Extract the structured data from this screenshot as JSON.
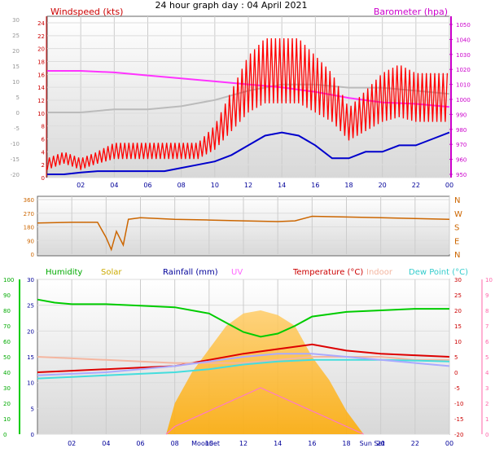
{
  "header": {
    "title": "24 hour graph day : 04 April 2021"
  },
  "chart_data": [
    {
      "type": "line",
      "panel": "wind-barometer",
      "legend": {
        "left": "Windspeed (kts)",
        "right": "Barometer (hpa)"
      },
      "x_ticks": [
        "02",
        "04",
        "06",
        "08",
        "10",
        "12",
        "14",
        "16",
        "18",
        "20",
        "22",
        "00"
      ],
      "x_range": [
        0,
        24
      ],
      "left_axis_outer": {
        "ticks": [
          "30",
          "25",
          "20",
          "15",
          "10",
          "5",
          "0",
          "-5",
          "-10",
          "-15",
          "-20"
        ],
        "range": [
          -20,
          30
        ]
      },
      "left_axis_inner": {
        "ticks": [
          "24",
          "22",
          "20",
          "18",
          "16",
          "14",
          "12",
          "10",
          "8",
          "6",
          "4",
          "2",
          "0"
        ],
        "range": [
          0,
          24
        ]
      },
      "right_axis": {
        "ticks": [
          "1050",
          "1040",
          "1030",
          "1020",
          "1010",
          "1000",
          "990",
          "980",
          "970",
          "960",
          "950"
        ],
        "range": [
          950,
          1050
        ]
      },
      "colors": {
        "wind": "#ff0000",
        "gust_avg": "#0000cc",
        "barometer": "#ff33ff",
        "temp_grey": "#bbbbbb",
        "axis_wind": "#cc0000",
        "axis_baro": "#cc00cc"
      },
      "series": [
        {
          "key": "wind",
          "x": [
            0,
            1,
            2,
            3,
            4,
            5,
            6,
            7,
            8,
            9,
            10,
            11,
            12,
            13,
            14,
            15,
            16,
            17,
            18,
            19,
            20,
            21,
            22,
            23,
            24
          ],
          "values": [
            2,
            3,
            2,
            3,
            4,
            4,
            4,
            4,
            4,
            4,
            6,
            10,
            14,
            16,
            16,
            16,
            14,
            12,
            8,
            10,
            12,
            13,
            12,
            12,
            12
          ]
        },
        {
          "key": "gust_avg",
          "x": [
            0,
            1,
            2,
            3,
            4,
            5,
            6,
            7,
            8,
            9,
            10,
            11,
            12,
            13,
            14,
            15,
            16,
            17,
            18,
            19,
            20,
            21,
            22,
            23,
            24
          ],
          "values": [
            0.5,
            0.5,
            0.8,
            1,
            1,
            1,
            1,
            1,
            1.5,
            2,
            2.5,
            3.5,
            5,
            6.5,
            7,
            6.5,
            5,
            3,
            3,
            4,
            4,
            5,
            5,
            6,
            7
          ]
        },
        {
          "key": "barometer",
          "x": [
            0,
            2,
            4,
            6,
            8,
            10,
            12,
            14,
            16,
            18,
            20,
            22,
            24
          ],
          "values": [
            1019,
            1019,
            1018,
            1016,
            1014,
            1012,
            1010,
            1008,
            1005,
            1001,
            998,
            997,
            995
          ]
        },
        {
          "key": "temp_grey",
          "x": [
            0,
            2,
            4,
            6,
            8,
            10,
            12,
            14,
            16,
            18,
            20,
            22,
            24
          ],
          "values": [
            0,
            0,
            1,
            1,
            2,
            4,
            7,
            9,
            9,
            8,
            8,
            7,
            6
          ]
        }
      ]
    },
    {
      "type": "line",
      "panel": "wind-direction",
      "left_ticks": [
        "360",
        "270",
        "180",
        "90",
        "0"
      ],
      "right_labels": [
        "N",
        "W",
        "S",
        "E",
        "N"
      ],
      "range": [
        0,
        360
      ],
      "color": "#cc6600",
      "series": [
        {
          "key": "direction",
          "x": [
            0,
            2,
            3.5,
            4,
            4.3,
            4.6,
            5,
            5.3,
            6,
            8,
            10,
            12,
            14,
            15,
            16,
            18,
            20,
            22,
            24
          ],
          "values": [
            205,
            210,
            210,
            110,
            30,
            150,
            60,
            230,
            240,
            230,
            225,
            220,
            215,
            220,
            250,
            245,
            240,
            235,
            230
          ]
        }
      ]
    },
    {
      "type": "line",
      "panel": "temp-humidity",
      "legend": [
        "Humidity",
        "Solar",
        "Rainfall (mm)",
        "UV",
        "Temperature (°C)",
        "Indoor",
        "Dew Point (°C)"
      ],
      "legend_colors": [
        "#00aa00",
        "#ccaa00",
        "#000099",
        "#ff66ff",
        "#cc0000",
        "#f4b6a0",
        "#33cccc"
      ],
      "axis_humidity": {
        "ticks": [
          "100",
          "90",
          "80",
          "70",
          "60",
          "50",
          "40",
          "30",
          "20",
          "10",
          "0"
        ],
        "range": [
          0,
          100
        ]
      },
      "axis_rain": {
        "ticks": [
          "30",
          "25",
          "20",
          "15",
          "10",
          "5",
          "0"
        ],
        "range": [
          0,
          30
        ]
      },
      "axis_temp": {
        "ticks": [
          "30",
          "25",
          "20",
          "15",
          "10",
          "5",
          "0",
          "-5",
          "-10",
          "-15",
          "-20"
        ],
        "range": [
          -20,
          30
        ]
      },
      "axis_uv": {
        "ticks": [
          "10",
          "9",
          "8",
          "7",
          "6",
          "5",
          "4",
          "3",
          "2",
          "1",
          "0"
        ],
        "range": [
          0,
          10
        ]
      },
      "x_ticks": [
        "02",
        "04",
        "06",
        "08",
        "10",
        "12",
        "14",
        "16",
        "18",
        "20",
        "22",
        "00"
      ],
      "x_event_labels": [
        {
          "x": 9.8,
          "text": "MoonSet"
        },
        {
          "x": 19.5,
          "text": "Sun Set"
        }
      ],
      "series": [
        {
          "key": "humidity",
          "color": "#00cc00",
          "x": [
            0,
            1,
            2,
            4,
            6,
            8,
            10,
            11,
            12,
            13,
            14,
            15,
            16,
            18,
            20,
            22,
            24
          ],
          "values": [
            87,
            85,
            84,
            84,
            83,
            82,
            78,
            72,
            66,
            63,
            65,
            70,
            76,
            79,
            80,
            81,
            81
          ]
        },
        {
          "key": "temperature",
          "color": "#dd0000",
          "x": [
            0,
            2,
            4,
            6,
            8,
            10,
            12,
            14,
            16,
            18,
            20,
            22,
            24
          ],
          "values": [
            0,
            0.5,
            1,
            1.5,
            2,
            4,
            6,
            7.5,
            9,
            7,
            6,
            5.5,
            5
          ]
        },
        {
          "key": "indoor",
          "color": "#f4b6a0",
          "x": [
            0,
            2,
            4,
            6,
            8,
            10,
            12,
            14,
            16,
            18,
            20,
            22,
            24
          ],
          "values": [
            5,
            4.5,
            4,
            3.5,
            3,
            3,
            3,
            4,
            5,
            5,
            5,
            4,
            4
          ]
        },
        {
          "key": "dewpoint",
          "color": "#44dddd",
          "x": [
            0,
            2,
            4,
            6,
            8,
            10,
            12,
            14,
            16,
            18,
            20,
            22,
            24
          ],
          "values": [
            -2,
            -1.5,
            -1,
            -0.5,
            0,
            1,
            2.5,
            3.5,
            4,
            4,
            4,
            3.8,
            3.5
          ]
        },
        {
          "key": "lilac",
          "color": "#aaaaff",
          "x": [
            0,
            2,
            4,
            6,
            8,
            10,
            12,
            14,
            16,
            18,
            20,
            22,
            24
          ],
          "values": [
            -1,
            -0.5,
            0,
            1,
            2,
            3.5,
            5,
            6,
            6,
            5,
            4,
            3,
            2
          ]
        },
        {
          "key": "uv",
          "color": "#ff77cc",
          "x": [
            7.5,
            8,
            10,
            12,
            13,
            14,
            16,
            18,
            19
          ],
          "values": [
            0,
            0.5,
            1.5,
            2.5,
            3,
            2.5,
            1.5,
            0.5,
            0
          ]
        }
      ],
      "solar": {
        "color": "#ffc000",
        "x": [
          7.5,
          8,
          9,
          10,
          11,
          12,
          13,
          14,
          15,
          16,
          17,
          18,
          19
        ],
        "values": [
          0,
          200,
          400,
          550,
          700,
          780,
          800,
          770,
          700,
          500,
          350,
          150,
          0
        ],
        "range": [
          0,
          1000
        ]
      }
    }
  ]
}
